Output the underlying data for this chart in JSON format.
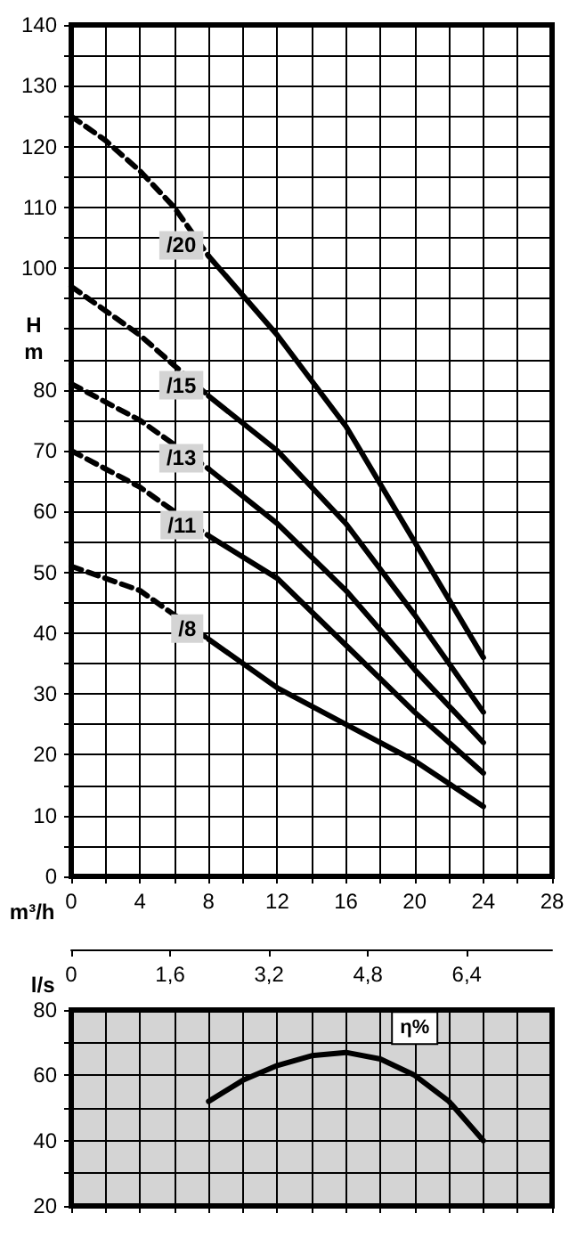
{
  "chart_data": [
    {
      "type": "line",
      "xlabel": "m³/h",
      "ylabel": "H\nm",
      "x2label": "l/s",
      "xlim": [
        0,
        28
      ],
      "xticks": [
        0,
        {
          "value": 2,
          "label": null
        },
        4,
        {
          "value": 6,
          "label": null
        },
        8,
        {
          "value": 10,
          "label": null
        },
        12,
        {
          "value": 14,
          "label": null
        },
        16,
        {
          "value": 18,
          "label": null
        },
        20,
        {
          "value": 22,
          "label": null
        },
        24,
        {
          "value": 26,
          "label": null
        },
        28
      ],
      "ylim": [
        0,
        140
      ],
      "yticks": [
        0,
        {
          "value": 5,
          "label": null
        },
        10,
        {
          "value": 15,
          "label": null
        },
        20,
        {
          "value": 25,
          "label": null
        },
        30,
        {
          "value": 35,
          "label": null
        },
        40,
        {
          "value": 45,
          "label": null
        },
        50,
        {
          "value": 55,
          "label": null
        },
        60,
        {
          "value": 65,
          "label": null
        },
        70,
        {
          "value": 75,
          "label": null
        },
        80,
        {
          "value": 85,
          "label": null
        },
        {
          "value": 90,
          "label": null
        },
        {
          "value": 95,
          "label": null
        },
        100,
        {
          "value": 105,
          "label": null
        },
        110,
        {
          "value": 115,
          "label": null
        },
        120,
        {
          "value": 125,
          "label": null
        },
        130,
        {
          "value": 135,
          "label": null
        },
        140
      ],
      "x2lim": [
        0,
        7.78
      ],
      "x2ticks": [
        0,
        {
          "value": 1.6,
          "label": "1,6"
        },
        {
          "value": 3.2,
          "label": "3,2"
        },
        {
          "value": 4.8,
          "label": "4,8"
        },
        {
          "value": 6.4,
          "label": "6,4"
        }
      ],
      "grid": true,
      "series": [
        {
          "color": "#000000",
          "line_style": "dashed",
          "x": [
            0,
            2,
            4,
            6,
            8
          ],
          "values": [
            125,
            121,
            116,
            110,
            102
          ]
        },
        {
          "name": "/20",
          "color": "#000000",
          "line_style": "solid",
          "x": [
            8,
            12,
            16,
            20,
            24
          ],
          "values": [
            102,
            89,
            74,
            55,
            36
          ]
        },
        {
          "color": "#000000",
          "line_style": "dashed",
          "x": [
            0,
            2,
            4,
            6,
            8
          ],
          "values": [
            97,
            93,
            89,
            84,
            79
          ]
        },
        {
          "name": "/15",
          "color": "#000000",
          "line_style": "solid",
          "x": [
            8,
            12,
            16,
            20,
            24
          ],
          "values": [
            79,
            70,
            58,
            43,
            27
          ]
        },
        {
          "color": "#000000",
          "line_style": "dashed",
          "x": [
            0,
            2,
            4,
            6,
            8
          ],
          "values": [
            81,
            78,
            75,
            71,
            67
          ]
        },
        {
          "name": "/13",
          "color": "#000000",
          "line_style": "solid",
          "x": [
            8,
            12,
            16,
            20,
            24
          ],
          "values": [
            67,
            58,
            47,
            34,
            22
          ]
        },
        {
          "color": "#000000",
          "line_style": "dashed",
          "x": [
            0,
            2,
            4,
            6,
            8
          ],
          "values": [
            70,
            67,
            64,
            60,
            56
          ]
        },
        {
          "name": "/11",
          "color": "#000000",
          "line_style": "solid",
          "x": [
            8,
            12,
            16,
            20,
            24
          ],
          "values": [
            56,
            49,
            38,
            27,
            17
          ]
        },
        {
          "color": "#000000",
          "line_style": "dashed",
          "x": [
            0,
            2,
            4,
            6,
            8
          ],
          "values": [
            51,
            49,
            47,
            43,
            39
          ]
        },
        {
          "name": "/8",
          "color": "#000000",
          "line_style": "solid",
          "x": [
            8,
            12,
            16,
            20,
            24
          ],
          "values": [
            39,
            31,
            25,
            19,
            11.5
          ]
        }
      ]
    },
    {
      "type": "line",
      "xlim": [
        0,
        28
      ],
      "xticks": [
        0,
        2,
        4,
        6,
        8,
        10,
        12,
        14,
        16,
        18,
        20,
        22,
        24,
        26,
        28
      ],
      "ylim": [
        20,
        80
      ],
      "yticks": [
        20,
        {
          "value": 30,
          "label": null
        },
        40,
        {
          "value": 50,
          "label": null
        },
        60,
        {
          "value": 70,
          "label": null
        },
        80
      ],
      "tick_labels": "y",
      "grid": true,
      "series": [
        {
          "name": "η%",
          "color": "#000000",
          "line_style": "solid",
          "x": [
            8,
            10,
            12,
            14,
            16,
            18,
            20,
            22,
            24
          ],
          "values": [
            52,
            58.5,
            63,
            66,
            67,
            65,
            60,
            52,
            40
          ]
        }
      ]
    }
  ]
}
